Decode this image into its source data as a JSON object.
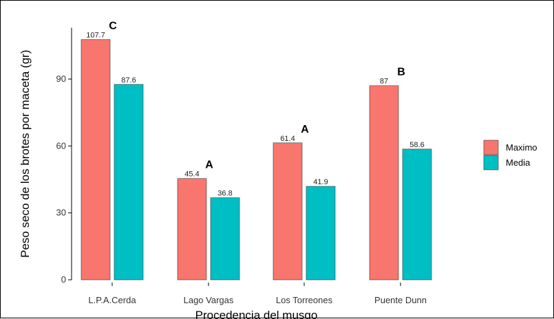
{
  "chart_data": {
    "type": "bar",
    "categories": [
      "L.P.A.Cerda",
      "Lago Vargas",
      "Los Torreones",
      "Puente Dunn"
    ],
    "series": [
      {
        "name": "Maximo",
        "values": [
          107.7,
          45.4,
          61.4,
          87
        ],
        "labels": [
          "107.7",
          "45.4",
          "61.4",
          "87"
        ],
        "color": "#F8766D"
      },
      {
        "name": "Media",
        "values": [
          87.6,
          36.8,
          41.9,
          58.6
        ],
        "labels": [
          "87.6",
          "36.8",
          "41.9",
          "58.6"
        ],
        "color": "#00BFC4"
      }
    ],
    "group_letters": [
      "C",
      "A",
      "A",
      "B"
    ],
    "xlabel": "Procedencia del musgo",
    "ylabel": "Peso seco de los brotes por maceta (gr)",
    "yticks": [
      0,
      30,
      60,
      90
    ],
    "ylim": [
      0,
      113
    ],
    "grid": false,
    "legend_position": "right"
  }
}
